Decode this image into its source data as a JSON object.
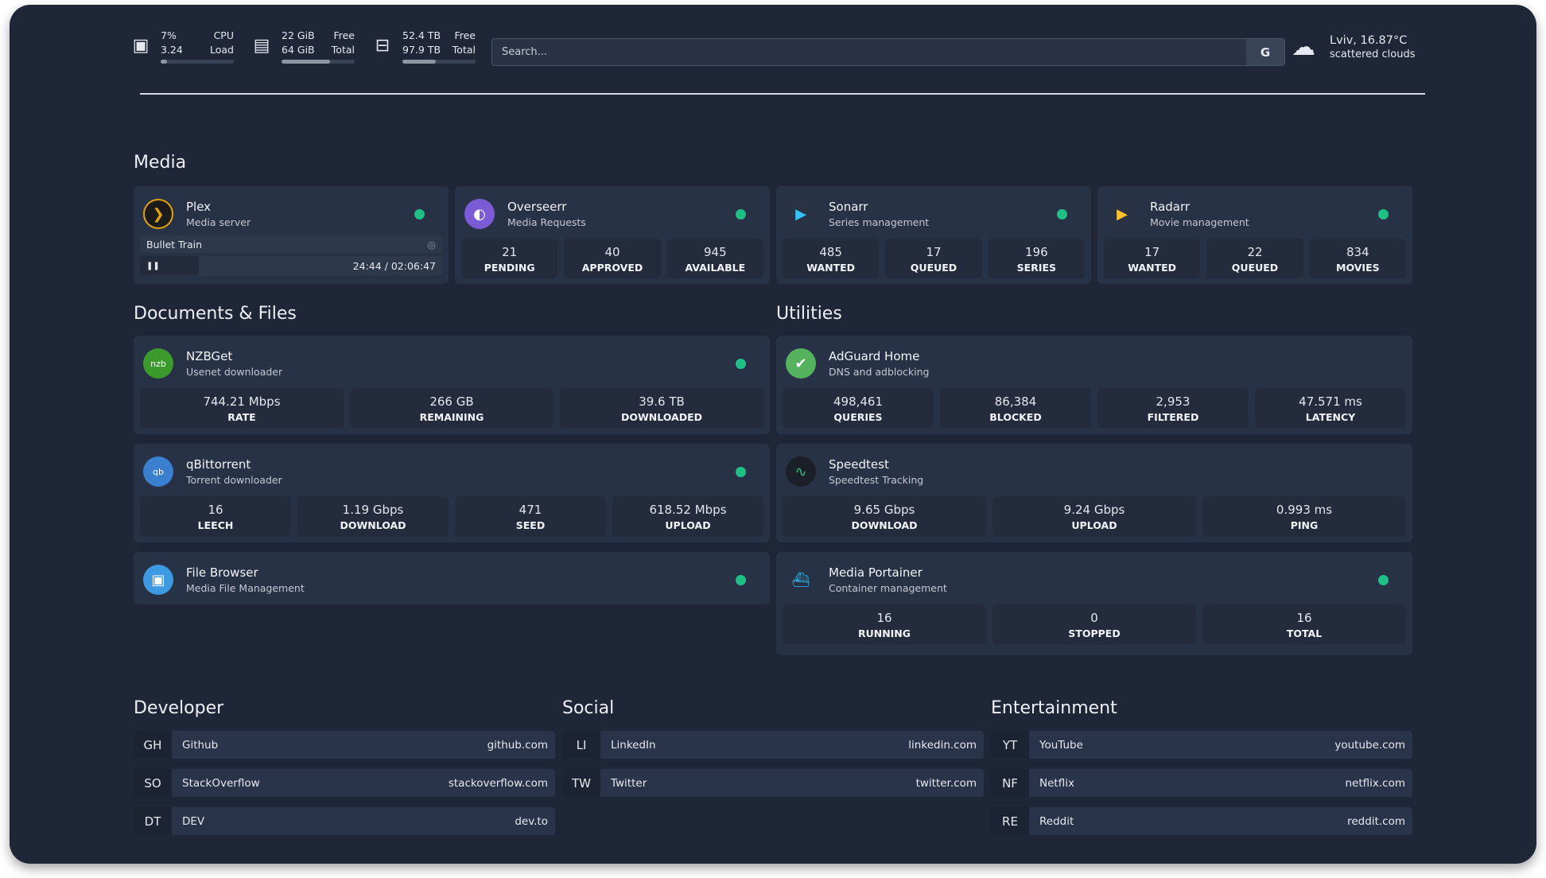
{
  "resources": {
    "cpu": {
      "icon": "cpu-icon",
      "v1": "7%",
      "l1": "CPU",
      "v2": "3.24",
      "l2": "Load",
      "usage_percent": 7
    },
    "memory": {
      "icon": "memory-icon",
      "v1": "22 GiB",
      "l1": "Free",
      "v2": "64 GiB",
      "l2": "Total",
      "usage_percent": 66
    },
    "disk": {
      "icon": "disk-icon",
      "v1": "52.4 TB",
      "l1": "Free",
      "v2": "97.9 TB",
      "l2": "Total",
      "usage_percent": 46
    }
  },
  "search": {
    "placeholder": "Search...",
    "provider_label": "G"
  },
  "weather": {
    "icon": "cloud-icon",
    "location_temp": "Lviv, 16.87°C",
    "condition": "scattered clouds"
  },
  "sections": {
    "media": "Media",
    "docs": "Documents & Files",
    "utilities": "Utilities",
    "developer": "Developer",
    "social": "Social",
    "entertainment": "Entertainment"
  },
  "status_color": "#1fbf86",
  "plex": {
    "name": "Plex",
    "desc": "Media server",
    "now_playing": "Bullet Train",
    "time": "24:44 / 02:06:47",
    "progress_percent": 19.5
  },
  "overseerr": {
    "name": "Overseerr",
    "desc": "Media Requests",
    "stats": [
      {
        "v": "21",
        "k": "PENDING"
      },
      {
        "v": "40",
        "k": "APPROVED"
      },
      {
        "v": "945",
        "k": "AVAILABLE"
      }
    ]
  },
  "sonarr": {
    "name": "Sonarr",
    "desc": "Series management",
    "stats": [
      {
        "v": "485",
        "k": "WANTED"
      },
      {
        "v": "17",
        "k": "QUEUED"
      },
      {
        "v": "196",
        "k": "SERIES"
      }
    ]
  },
  "radarr": {
    "name": "Radarr",
    "desc": "Movie management",
    "stats": [
      {
        "v": "17",
        "k": "WANTED"
      },
      {
        "v": "22",
        "k": "QUEUED"
      },
      {
        "v": "834",
        "k": "MOVIES"
      }
    ]
  },
  "nzbget": {
    "name": "NZBGet",
    "desc": "Usenet downloader",
    "logo": "nzbget",
    "stats": [
      {
        "v": "744.21 Mbps",
        "k": "RATE"
      },
      {
        "v": "266 GB",
        "k": "REMAINING"
      },
      {
        "v": "39.6 TB",
        "k": "DOWNLOADED"
      }
    ]
  },
  "qbit": {
    "name": "qBittorrent",
    "desc": "Torrent downloader",
    "logo": "qb",
    "stats": [
      {
        "v": "16",
        "k": "LEECH"
      },
      {
        "v": "1.19 Gbps",
        "k": "DOWNLOAD"
      },
      {
        "v": "471",
        "k": "SEED"
      },
      {
        "v": "618.52 Mbps",
        "k": "UPLOAD"
      }
    ]
  },
  "filebrowser": {
    "name": "File Browser",
    "desc": "Media File Management"
  },
  "adguard": {
    "name": "AdGuard Home",
    "desc": "DNS and adblocking",
    "stats": [
      {
        "v": "498,461",
        "k": "QUERIES"
      },
      {
        "v": "86,384",
        "k": "BLOCKED"
      },
      {
        "v": "2,953",
        "k": "FILTERED"
      },
      {
        "v": "47.571 ms",
        "k": "LATENCY"
      }
    ]
  },
  "speedtest": {
    "name": "Speedtest",
    "desc": "Speedtest Tracking",
    "stats": [
      {
        "v": "9.65 Gbps",
        "k": "DOWNLOAD"
      },
      {
        "v": "9.24 Gbps",
        "k": "UPLOAD"
      },
      {
        "v": "0.993 ms",
        "k": "PING"
      }
    ]
  },
  "portainer": {
    "name": "Media Portainer",
    "desc": "Container management",
    "stats": [
      {
        "v": "16",
        "k": "RUNNING"
      },
      {
        "v": "0",
        "k": "STOPPED"
      },
      {
        "v": "16",
        "k": "TOTAL"
      }
    ]
  },
  "bookmarks": {
    "developer": [
      {
        "abbr": "GH",
        "name": "Github",
        "url": "github.com"
      },
      {
        "abbr": "SO",
        "name": "StackOverflow",
        "url": "stackoverflow.com"
      },
      {
        "abbr": "DT",
        "name": "DEV",
        "url": "dev.to"
      }
    ],
    "social": [
      {
        "abbr": "LI",
        "name": "LinkedIn",
        "url": "linkedin.com"
      },
      {
        "abbr": "TW",
        "name": "Twitter",
        "url": "twitter.com"
      }
    ],
    "entertainment": [
      {
        "abbr": "YT",
        "name": "YouTube",
        "url": "youtube.com"
      },
      {
        "abbr": "NF",
        "name": "Netflix",
        "url": "netflix.com"
      },
      {
        "abbr": "RE",
        "name": "Reddit",
        "url": "reddit.com"
      }
    ]
  }
}
